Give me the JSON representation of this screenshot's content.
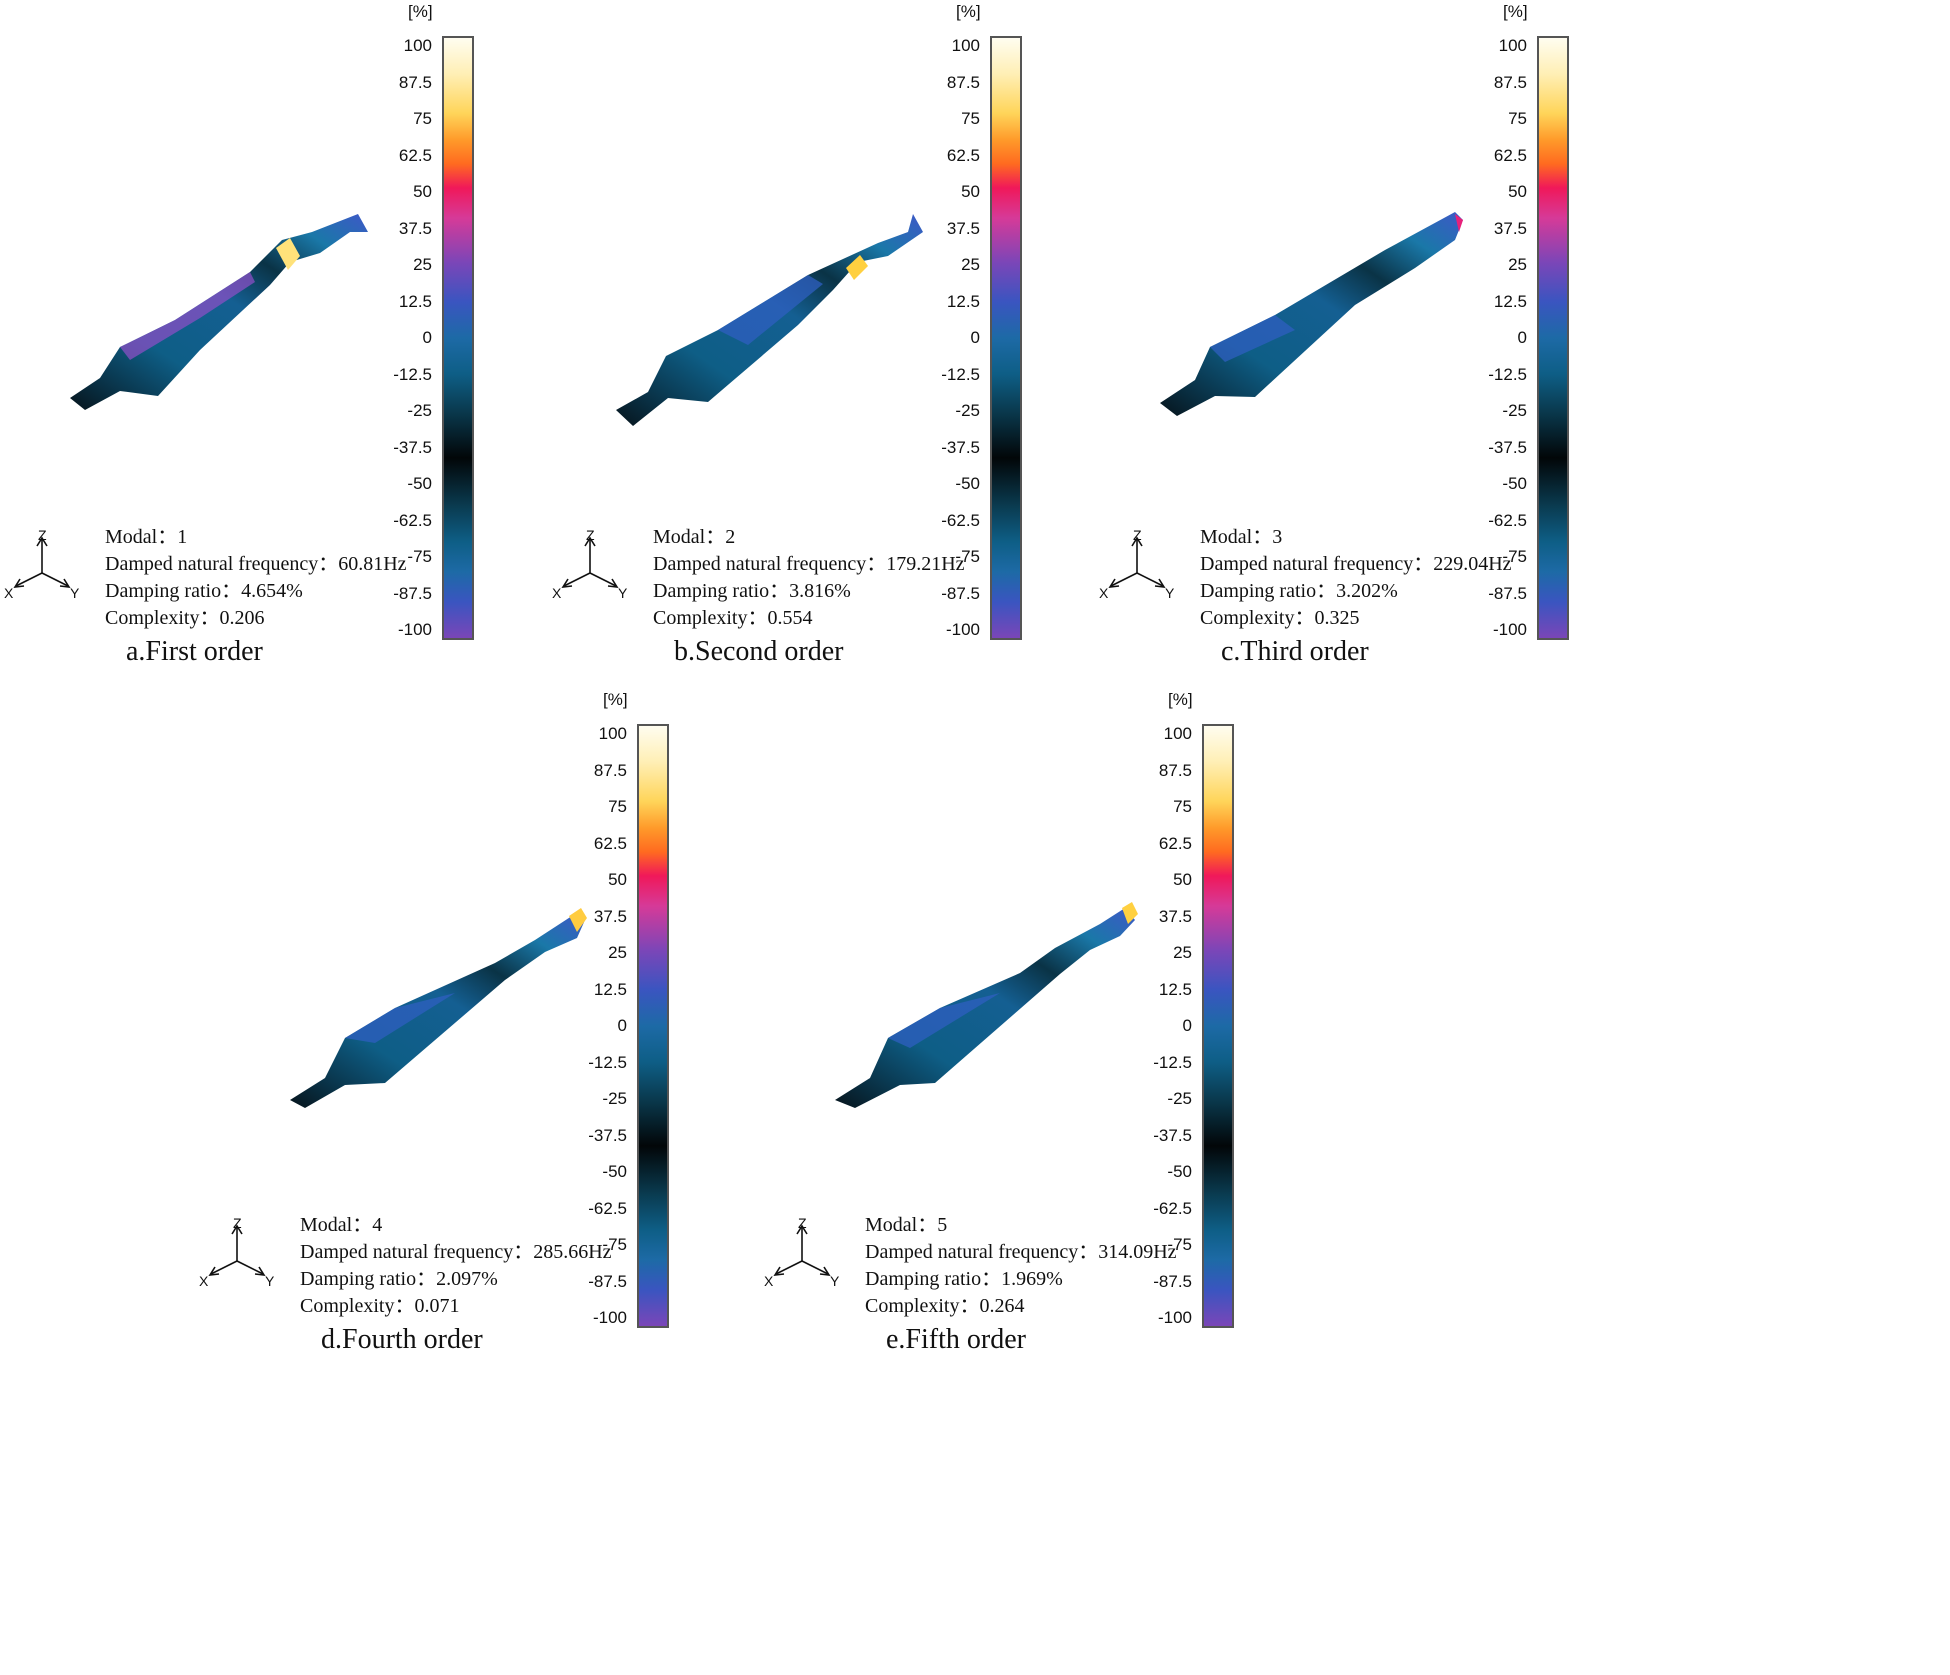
{
  "unit_label": "[%]",
  "scale_ticks": [
    "100",
    "87.5",
    "75",
    "62.5",
    "50",
    "37.5",
    "25",
    "12.5",
    "0",
    "-12.5",
    "-25",
    "-37.5",
    "-50",
    "-62.5",
    "-75",
    "-87.5",
    "-100"
  ],
  "axis_labels": {
    "x": "X",
    "y": "Y",
    "z": "Z"
  },
  "labels": {
    "modal": "Modal：",
    "frequency": "Damped natural frequency：",
    "damping": "Damping ratio：",
    "complexity": "Complexity："
  },
  "modes": [
    {
      "modal": "1",
      "frequency": "60.81Hz",
      "damping": "4.654%",
      "complexity": "0.206",
      "caption": "a.First order",
      "hotspot_color": "#ffe27a"
    },
    {
      "modal": "2",
      "frequency": "179.21Hz",
      "damping": "3.816%",
      "complexity": "0.554",
      "caption": "b.Second order",
      "hotspot_color": "#ffd040"
    },
    {
      "modal": "3",
      "frequency": "229.04Hz",
      "damping": "3.202%",
      "complexity": "0.325",
      "caption": "c.Third order",
      "hotspot_color": "#e8207a"
    },
    {
      "modal": "4",
      "frequency": "285.66Hz",
      "damping": "2.097%",
      "complexity": "0.071",
      "caption": "d.Fourth order",
      "hotspot_color": "#ffcc40"
    },
    {
      "modal": "5",
      "frequency": "314.09Hz",
      "damping": "1.969%",
      "complexity": "0.264",
      "caption": "e.Fifth order",
      "hotspot_color": "#ffd040"
    }
  ]
}
